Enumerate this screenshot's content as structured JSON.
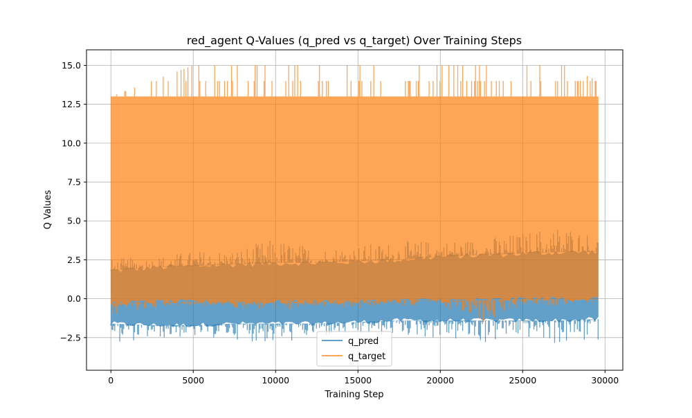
{
  "chart_data": {
    "type": "line",
    "title": "red_agent Q-Values (q_pred vs q_target) Over Training Steps",
    "xlabel": "Training Step",
    "ylabel": "Q Values",
    "xlim": [
      -1480,
      31080
    ],
    "ylim": [
      -4.6,
      16.0
    ],
    "xticks": [
      0,
      5000,
      10000,
      15000,
      20000,
      25000,
      30000
    ],
    "xtick_labels": [
      "0",
      "5000",
      "10000",
      "15000",
      "20000",
      "25000",
      "30000"
    ],
    "yticks": [
      -2.5,
      0.0,
      2.5,
      5.0,
      7.5,
      10.0,
      12.5,
      15.0
    ],
    "ytick_labels": [
      "−2.5",
      "0.0",
      "2.5",
      "5.0",
      "7.5",
      "10.0",
      "12.5",
      "15.0"
    ],
    "grid": true,
    "legend_position": "lower center",
    "n_steps": 29600,
    "series": [
      {
        "name": "q_pred",
        "color": "#1f77b4",
        "opacity": 0.7,
        "description_of_range": "dense noisy band",
        "x": [
          0,
          2500,
          5000,
          7500,
          10000,
          12500,
          15000,
          17500,
          20000,
          22500,
          25000,
          27500,
          29600
        ],
        "min": [
          -2.9,
          -2.6,
          -2.5,
          -2.6,
          -3.0,
          -2.5,
          -2.5,
          -2.4,
          -2.6,
          -3.0,
          -2.5,
          -3.1,
          -2.7
        ],
        "low": [
          -1.6,
          -1.7,
          -1.7,
          -1.6,
          -1.6,
          -1.6,
          -1.5,
          -1.4,
          -1.4,
          -1.4,
          -1.4,
          -1.4,
          -1.3
        ],
        "high": [
          1.8,
          2.0,
          2.1,
          2.2,
          2.3,
          2.3,
          2.4,
          2.5,
          2.7,
          2.8,
          2.9,
          3.0,
          3.0
        ],
        "max": [
          2.6,
          2.7,
          3.1,
          3.2,
          3.9,
          3.3,
          3.5,
          3.7,
          3.8,
          3.9,
          4.3,
          4.9,
          4.0
        ]
      },
      {
        "name": "q_target",
        "color": "#ff7f0e",
        "opacity": 0.7,
        "x": [
          0,
          2500,
          5000,
          7500,
          10000,
          12500,
          15000,
          17500,
          20000,
          22500,
          25000,
          27500,
          29600
        ],
        "min": [
          -1.0,
          -0.6,
          -0.5,
          -0.6,
          -0.8,
          -0.5,
          -0.6,
          -0.5,
          -0.4,
          -1.8,
          -0.4,
          -0.5,
          -0.4
        ],
        "low": [
          -0.3,
          -0.2,
          -0.2,
          -0.2,
          -0.2,
          -0.2,
          -0.2,
          -0.1,
          -0.1,
          -0.1,
          0.0,
          0.0,
          0.0
        ],
        "high": [
          13.0,
          13.0,
          13.0,
          13.0,
          13.0,
          13.0,
          13.0,
          13.0,
          13.0,
          13.0,
          13.0,
          13.0,
          13.0
        ],
        "max": [
          13.0,
          14.0,
          15.0,
          15.0,
          15.0,
          15.0,
          15.0,
          15.0,
          15.0,
          15.0,
          15.0,
          15.0,
          14.0
        ]
      }
    ]
  }
}
